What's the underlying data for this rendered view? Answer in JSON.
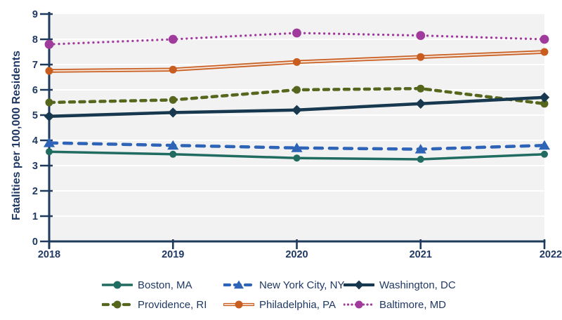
{
  "chart_data": {
    "type": "line",
    "title": "",
    "xlabel": "",
    "ylabel": "Fatalities per 100,000 Residents",
    "categories": [
      "2018",
      "2019",
      "2020",
      "2021",
      "2022"
    ],
    "ylim": [
      0,
      9
    ],
    "y_ticks": [
      0,
      1,
      2,
      3,
      4,
      5,
      6,
      7,
      8,
      9
    ],
    "grid": "horizontal white gridlines on light gray plot area",
    "legend_position": "bottom",
    "series": [
      {
        "name": "Boston, MA",
        "color": "#216c61",
        "line_style": "solid",
        "marker": "circle",
        "values": [
          3.55,
          3.45,
          3.3,
          3.25,
          3.45
        ]
      },
      {
        "name": "New York City, NY",
        "color": "#2d64b8",
        "line_style": "dashed",
        "marker": "triangle",
        "values": [
          3.9,
          3.8,
          3.7,
          3.65,
          3.8
        ]
      },
      {
        "name": "Washington, DC",
        "color": "#17384e",
        "line_style": "solid",
        "marker": "diamond",
        "values": [
          4.95,
          5.1,
          5.2,
          5.45,
          5.7
        ]
      },
      {
        "name": "Providence, RI",
        "color": "#56671d",
        "line_style": "dashed",
        "marker": "circle",
        "values": [
          5.5,
          5.6,
          6.0,
          6.05,
          5.45
        ]
      },
      {
        "name": "Philadelphia, PA",
        "color": "#c85d1f",
        "line_style": "double",
        "marker": "circle",
        "values": [
          6.75,
          6.8,
          7.1,
          7.3,
          7.5
        ]
      },
      {
        "name": "Baltimore, MD",
        "color": "#a13a9d",
        "line_style": "dotted",
        "marker": "circle",
        "values": [
          7.8,
          8.0,
          8.25,
          8.15,
          8.0
        ]
      }
    ],
    "colors": {
      "axis": "#1e3a5c",
      "text": "#1f3864",
      "plot_bg": "#f2f2f2",
      "gridline": "#ffffff",
      "double_line_core": "#f3e0d2"
    }
  }
}
